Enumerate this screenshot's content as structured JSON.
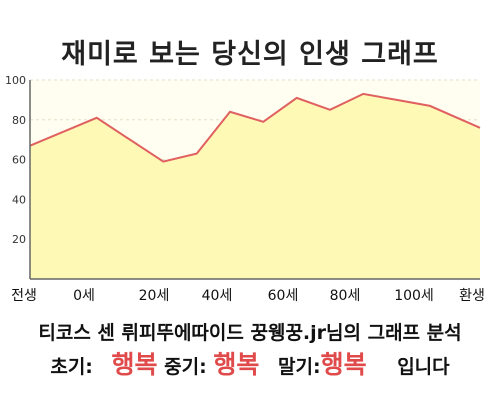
{
  "title": "재미로 보는 당신의 인생 그래프",
  "summary": "티코스 센 뤼피뚜에따이드 꿍웽꿍.jr님의 그래프 분석",
  "verdict": {
    "early_label": "초기:",
    "early_value": "행복",
    "mid_label": "중기:",
    "mid_value": "행복",
    "late_label": "말기:",
    "late_value": "행복",
    "suffix": "입니다"
  },
  "colors": {
    "line": "#e06060",
    "fill": "#fff9b6",
    "plot_bg": "#fffef0",
    "grid": "#e3dfc8",
    "axis": "#666666"
  },
  "chart_data": {
    "type": "area",
    "x_tick_labels": [
      "전생",
      "0세",
      "20세",
      "40세",
      "60세",
      "80세",
      "100세",
      "환생"
    ],
    "y_ticks": [
      20,
      40,
      60,
      80,
      100
    ],
    "ylim": [
      0,
      100
    ],
    "grid": true,
    "series": [
      {
        "x": [
          -20,
          0,
          20,
          30,
          40,
          50,
          60,
          70,
          80,
          90,
          100,
          115
        ],
        "values": [
          67,
          81,
          59,
          63,
          84,
          79,
          91,
          85,
          93,
          90,
          87,
          76
        ]
      }
    ]
  }
}
